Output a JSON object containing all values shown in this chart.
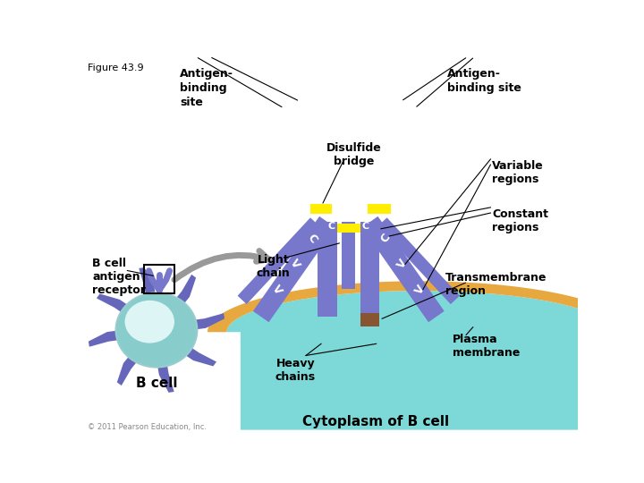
{
  "title": "Figure 43.9",
  "bg_color": "#ffffff",
  "antibody_color": "#7777cc",
  "yellow_color": "#ffee00",
  "orange_membrane": "#e8a840",
  "teal_cytoplasm": "#7dd8d8",
  "teal_cell_outer": "#88cccc",
  "teal_cell_inner": "#bbeeee",
  "purple_spikes": "#6666bb",
  "gray_arrow": "#aaaaaa",
  "text_color": "#000000",
  "label_antigen_left": "Antigen-\nbinding\nsite",
  "label_antigen_right": "Antigen-\nbinding site",
  "label_disulfide": "Disulfide\nbridge",
  "label_variable": "Variable\nregions",
  "label_constant": "Constant\nregions",
  "label_light_chain": "Light\nchain",
  "label_heavy_chains": "Heavy\nchains",
  "label_transmembrane": "Transmembrane\nregion",
  "label_plasma": "Plasma\nmembrane",
  "label_bcell_antigen": "B cell\nantigen\nreceptor",
  "label_bcell": "B cell",
  "label_cytoplasm": "Cytoplasm of B cell",
  "copyright": "© 2011 Pearson Education, Inc."
}
